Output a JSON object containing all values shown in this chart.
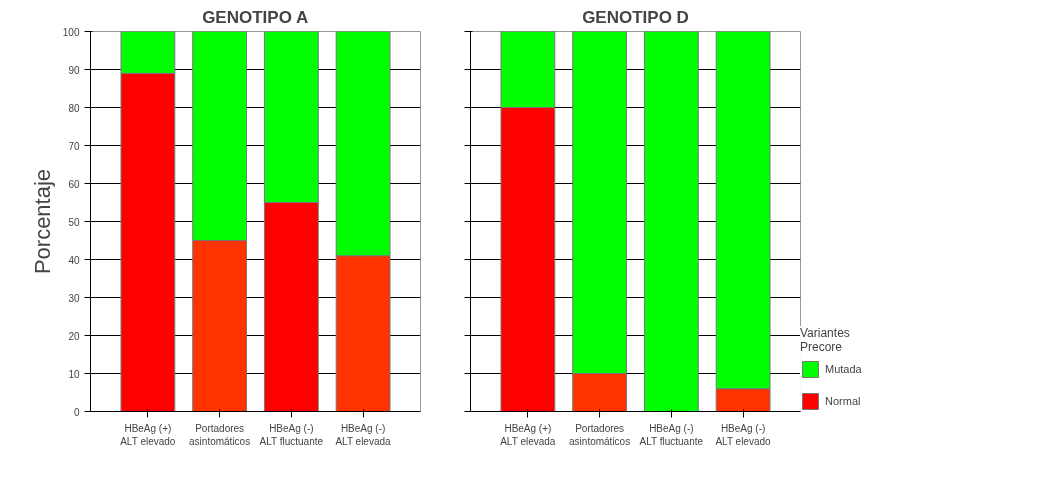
{
  "chart_data": [
    {
      "type": "bar",
      "title": "GENOTIPO A",
      "ylabel": "Porcentaje",
      "stacked": true,
      "categories": [
        "HBeAg (+)\nALT elevado",
        "Portadores\nasintomáticos",
        "HBeAg (-)\nALT fluctuante",
        "HBeAg (-)\nALT elevada"
      ],
      "series": [
        {
          "colors": [
            "#ff0000",
            "#ff3300",
            "#ff0000",
            "#ff3300"
          ],
          "values": [
            89,
            45,
            55,
            41
          ]
        },
        {
          "color": "#00ff00",
          "values": [
            11,
            55,
            45,
            59
          ]
        }
      ],
      "ylim": [
        0,
        100
      ],
      "yticks": [
        0,
        10,
        20,
        30,
        40,
        50,
        60,
        70,
        80,
        90,
        100
      ],
      "grid": "y"
    },
    {
      "type": "bar",
      "title": "GENOTIPO D",
      "stacked": true,
      "legend_title": "Variantes\nPrecore",
      "categories": [
        "HBeAg (+)\nALT elevada",
        "Portadores\nasintomáticos",
        "HBeAg (-)\nALT fluctuante",
        "HBeAg (-)\nALT elevado"
      ],
      "series": [
        {
          "name": "Normal",
          "colors": [
            "#ff0000",
            "#ff3300",
            "#ff0000",
            "#ff3300"
          ],
          "values": [
            80,
            10,
            0,
            6
          ]
        },
        {
          "name": "Mutada",
          "color": "#00ff00",
          "values": [
            20,
            90,
            100,
            94
          ]
        }
      ],
      "ylim": [
        0,
        100
      ],
      "yticks": [
        0,
        10,
        20,
        30,
        40,
        50,
        60,
        70,
        80,
        90,
        100
      ],
      "grid": "y",
      "legend": "right",
      "tick_labels": "x"
    }
  ]
}
